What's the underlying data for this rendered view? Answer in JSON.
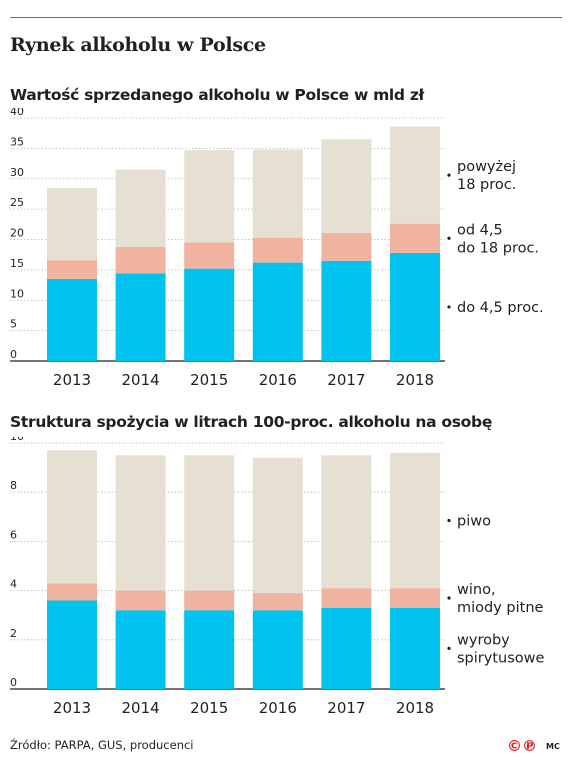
{
  "title": "Rynek alkoholu w Polsce",
  "source": "Źródło: PARPA, GUS, producenci",
  "logo": {
    "symbol_1": "©",
    "symbol_2": "℗",
    "credit": "MC"
  },
  "colors": {
    "base": "#00c3ef",
    "middle": "#f0b3a0",
    "top": "#e6e0d2",
    "axis": "#231f20",
    "grid": "#b9b5ac"
  },
  "chart_data": [
    {
      "type": "bar",
      "stacked": true,
      "title": "Wartość sprzedanego alkoholu w Polsce w mld zł",
      "categories": [
        "2013",
        "2014",
        "2015",
        "2016",
        "2017",
        "2018"
      ],
      "ylim": [
        0,
        40
      ],
      "yticks": [
        "0",
        "5",
        "10",
        "15",
        "20",
        "25",
        "30",
        "35",
        "40"
      ],
      "grid": true,
      "series": [
        {
          "name": "do 4,5 proc.",
          "name_lines": [
            "do 4,5 proc."
          ],
          "values": [
            13.5,
            14.4,
            15.2,
            16.2,
            16.5,
            17.8
          ]
        },
        {
          "name": "od 4,5 do 18 proc.",
          "name_lines": [
            "od 4,5",
            "do 18 proc."
          ],
          "values": [
            3.1,
            4.4,
            4.3,
            4.1,
            4.6,
            4.8
          ]
        },
        {
          "name": "powyżej 18 proc.",
          "name_lines": [
            "powyżej",
            "18 proc."
          ],
          "values": [
            11.9,
            12.7,
            15.2,
            14.5,
            15.4,
            16.0
          ]
        }
      ]
    },
    {
      "type": "bar",
      "stacked": true,
      "title": "Struktura spożycia w litrach 100-proc. alkoholu na osobę",
      "categories": [
        "2013",
        "2014",
        "2015",
        "2016",
        "2017",
        "2018"
      ],
      "ylim": [
        0,
        10
      ],
      "yticks": [
        "0",
        "2",
        "4",
        "6",
        "8",
        "10"
      ],
      "grid": true,
      "series": [
        {
          "name": "wyroby spirytusowe",
          "name_lines": [
            "wyroby",
            "spirytusowe"
          ],
          "values": [
            3.6,
            3.2,
            3.2,
            3.2,
            3.3,
            3.3
          ]
        },
        {
          "name": "wino, miody pitne",
          "name_lines": [
            "wino,",
            "miody pitne"
          ],
          "values": [
            0.7,
            0.8,
            0.8,
            0.7,
            0.8,
            0.8
          ]
        },
        {
          "name": "piwo",
          "name_lines": [
            "piwo"
          ],
          "values": [
            5.4,
            5.5,
            5.5,
            5.5,
            5.4,
            5.5
          ]
        }
      ]
    }
  ]
}
